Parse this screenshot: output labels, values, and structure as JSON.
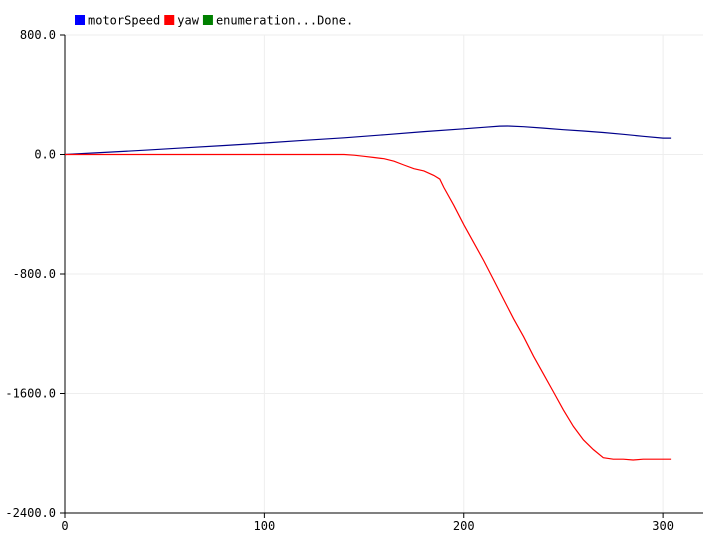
{
  "window": {
    "title": ""
  },
  "legend": {
    "items": [
      {
        "label": "motorSpeed",
        "color": "#0000ff"
      },
      {
        "label": "yaw",
        "color": "#ff0000"
      },
      {
        "label": "enumeration...Done.",
        "color": "#008000"
      }
    ]
  },
  "chart_data": {
    "type": "line",
    "title": "",
    "xlabel": "",
    "ylabel": "",
    "xlim": [
      0,
      320
    ],
    "ylim": [
      -2400,
      800
    ],
    "x_ticks": [
      0,
      100,
      200,
      300
    ],
    "x_tick_labels": [
      "0",
      "100",
      "200",
      "300"
    ],
    "y_ticks": [
      800,
      0,
      -800,
      -1600,
      -2400
    ],
    "y_tick_labels": [
      "800.0",
      "0.0",
      "-800.0",
      "-1600.0",
      "-2400.0"
    ],
    "grid": true,
    "legend_position": "top-left",
    "series": [
      {
        "name": "motorSpeed",
        "color": "#00008b",
        "x": [
          0,
          20,
          40,
          60,
          80,
          100,
          120,
          140,
          160,
          180,
          200,
          210,
          218,
          222,
          230,
          240,
          250,
          260,
          270,
          280,
          290,
          300,
          304
        ],
        "y": [
          0,
          14,
          29,
          45,
          60,
          77,
          95,
          112,
          132,
          153,
          172,
          182,
          190,
          191,
          186,
          177,
          166,
          157,
          147,
          135,
          122,
          110,
          110
        ]
      },
      {
        "name": "yaw",
        "color": "#ff0000",
        "x": [
          0,
          50,
          100,
          140,
          145,
          150,
          155,
          160,
          165,
          170,
          175,
          180,
          185,
          188,
          190,
          195,
          200,
          205,
          210,
          215,
          220,
          225,
          230,
          235,
          240,
          245,
          250,
          255,
          260,
          265,
          270,
          275,
          280,
          285,
          290,
          295,
          300,
          304
        ],
        "y": [
          0,
          0,
          0,
          0,
          -5,
          -12,
          -20,
          -28,
          -45,
          -70,
          -95,
          -110,
          -140,
          -165,
          -220,
          -340,
          -470,
          -590,
          -710,
          -840,
          -970,
          -1100,
          -1220,
          -1350,
          -1470,
          -1590,
          -1710,
          -1820,
          -1910,
          -1975,
          -2030,
          -2040,
          -2040,
          -2045,
          -2040,
          -2040,
          -2040,
          -2040
        ]
      }
    ]
  }
}
